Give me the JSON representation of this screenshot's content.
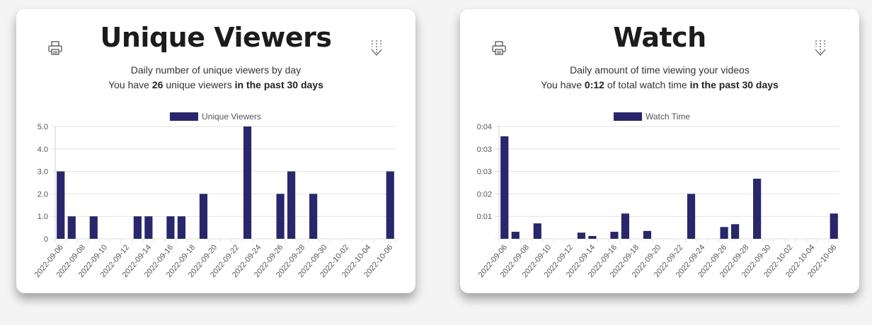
{
  "cards": [
    {
      "title": "Unique Viewers",
      "subtitle": "Daily number of unique viewers by day",
      "summary_prefix": "You have",
      "summary_value": "26",
      "summary_middle": "unique viewers",
      "summary_suffix": "in the past 30 days",
      "print_icon": "printer-icon",
      "download_icon": "download-arrow-icon"
    },
    {
      "title": "Watch",
      "subtitle": "Daily amount of time viewing your videos",
      "summary_prefix": "You have",
      "summary_value": "0:12",
      "summary_middle": "of total watch time",
      "summary_suffix": "in the past 30 days",
      "print_icon": "printer-icon",
      "download_icon": "download-arrow-icon"
    }
  ],
  "chart_data": [
    {
      "type": "bar",
      "title": "",
      "xlabel": "",
      "ylabel": "",
      "ylim": [
        0,
        5
      ],
      "yticks": [
        "0",
        "1.0",
        "2.0",
        "3.0",
        "4.0",
        "5.0"
      ],
      "grid": true,
      "legend_position": "top-center",
      "bar_color": "#29266b",
      "categories": [
        "2022-09-06",
        "2022-09-07",
        "2022-09-08",
        "2022-09-09",
        "2022-09-10",
        "2022-09-11",
        "2022-09-12",
        "2022-09-13",
        "2022-09-14",
        "2022-09-15",
        "2022-09-16",
        "2022-09-17",
        "2022-09-18",
        "2022-09-19",
        "2022-09-20",
        "2022-09-21",
        "2022-09-22",
        "2022-09-23",
        "2022-09-24",
        "2022-09-25",
        "2022-09-26",
        "2022-09-27",
        "2022-09-28",
        "2022-09-29",
        "2022-09-30",
        "2022-10-01",
        "2022-10-02",
        "2022-10-03",
        "2022-10-04",
        "2022-10-05",
        "2022-10-06"
      ],
      "xtick_labels": [
        "2022-09-06",
        "2022-09-08",
        "2022-09-10",
        "2022-09-12",
        "2022-09-14",
        "2022-09-16",
        "2022-09-18",
        "2022-09-20",
        "2022-09-22",
        "2022-09-24",
        "2022-09-26",
        "2022-09-28",
        "2022-09-30",
        "2022-10-02",
        "2022-10-04",
        "2022-10-06"
      ],
      "series": [
        {
          "name": "Unique Viewers",
          "values": [
            3,
            1,
            0,
            1,
            0,
            0,
            0,
            1,
            1,
            0,
            1,
            1,
            0,
            2,
            0,
            0,
            0,
            5,
            0,
            0,
            2,
            3,
            0,
            2,
            0,
            0,
            0,
            0,
            0,
            0,
            3
          ]
        }
      ]
    },
    {
      "type": "bar",
      "title": "",
      "xlabel": "",
      "ylabel": "",
      "ylim": [
        0,
        4
      ],
      "yticks": [
        "",
        "0:01",
        "0:02",
        "0:03",
        "0:03",
        "0:04"
      ],
      "grid": true,
      "legend_position": "top-center",
      "bar_color": "#29266b",
      "categories": [
        "2022-09-06",
        "2022-09-07",
        "2022-09-08",
        "2022-09-09",
        "2022-09-10",
        "2022-09-11",
        "2022-09-12",
        "2022-09-13",
        "2022-09-14",
        "2022-09-15",
        "2022-09-16",
        "2022-09-17",
        "2022-09-18",
        "2022-09-19",
        "2022-09-20",
        "2022-09-21",
        "2022-09-22",
        "2022-09-23",
        "2022-09-24",
        "2022-09-25",
        "2022-09-26",
        "2022-09-27",
        "2022-09-28",
        "2022-09-29",
        "2022-09-30",
        "2022-10-01",
        "2022-10-02",
        "2022-10-03",
        "2022-10-04",
        "2022-10-05",
        "2022-10-06"
      ],
      "xtick_labels": [
        "2022-09-06",
        "2022-09-08",
        "2022-09-10",
        "2022-09-12",
        "2022-09-14",
        "2022-09-16",
        "2022-09-18",
        "2022-09-20",
        "2022-09-22",
        "2022-09-24",
        "2022-09-26",
        "2022-09-28",
        "2022-09-30",
        "2022-10-02",
        "2022-10-04",
        "2022-10-06"
      ],
      "series": [
        {
          "name": "Watch Time",
          "values": [
            3.65,
            0.25,
            0,
            0.55,
            0,
            0,
            0,
            0.22,
            0.1,
            0,
            0.25,
            0.9,
            0,
            0.28,
            0,
            0,
            0,
            1.6,
            0,
            0,
            0.42,
            0.52,
            0,
            2.14,
            0,
            0,
            0,
            0,
            0,
            0,
            0.9
          ]
        }
      ]
    }
  ]
}
